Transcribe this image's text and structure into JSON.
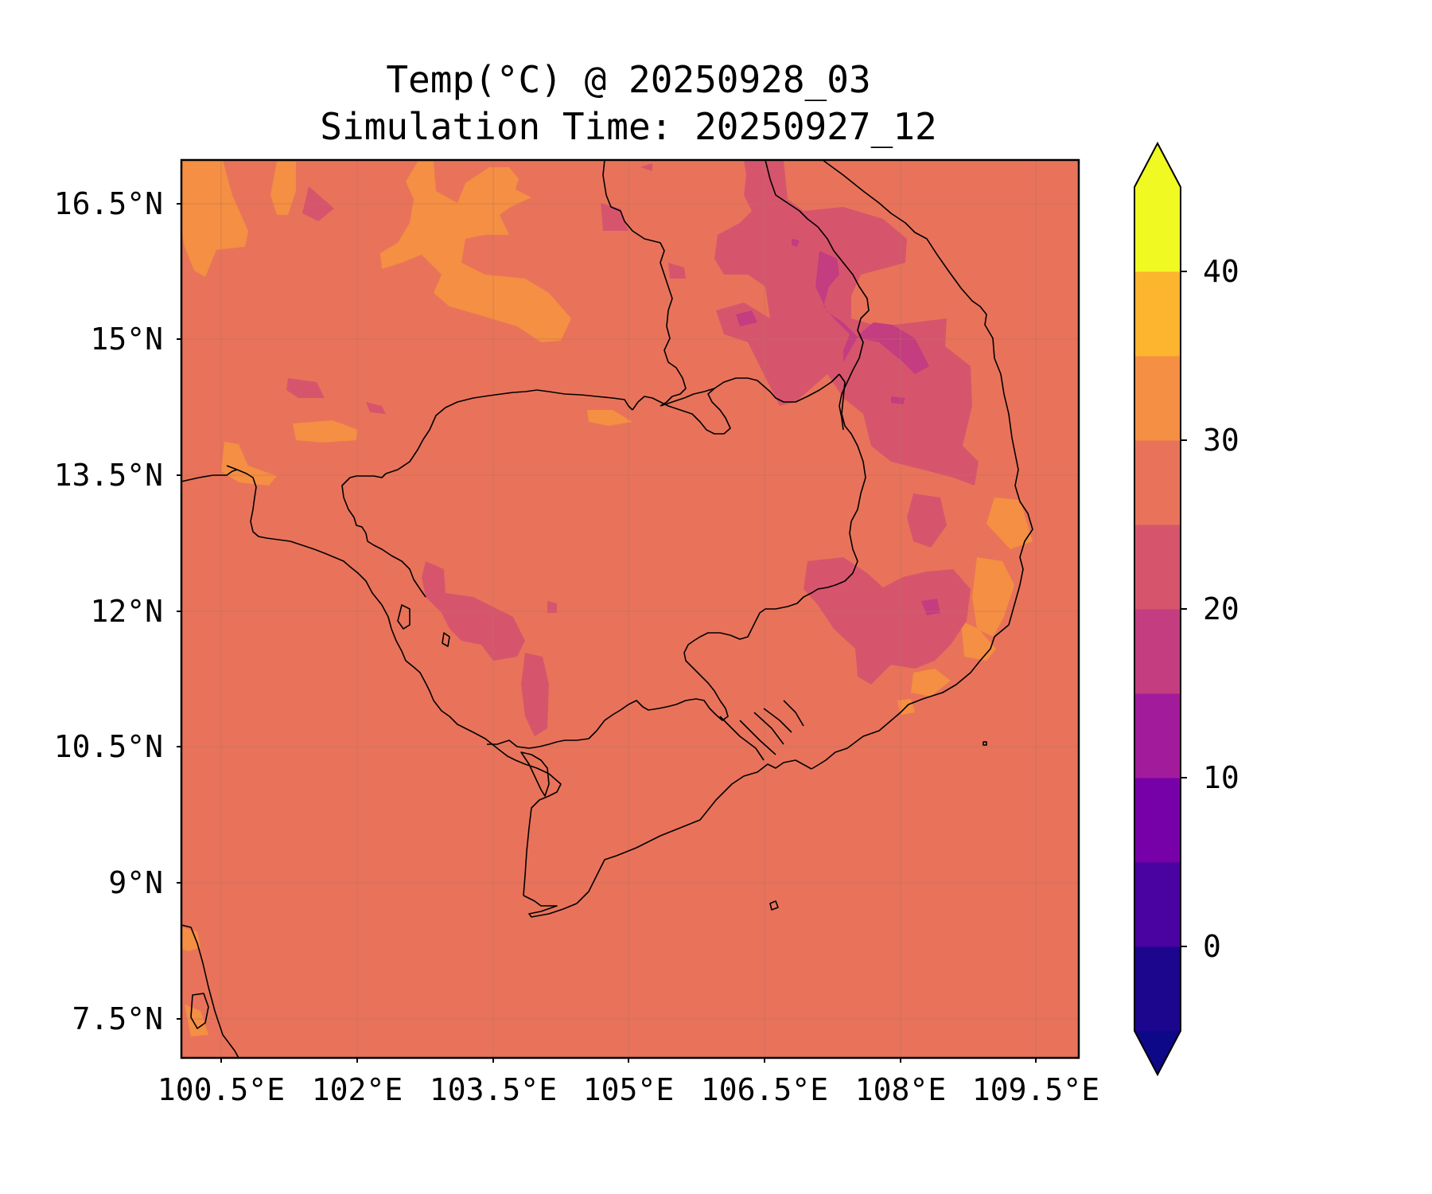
{
  "title": {
    "line1": "Temp(°C) @ 20250928_03",
    "line2": "Simulation Time: 20250927_12"
  },
  "axes": {
    "lat_ticks": [
      "16.5°N",
      "15°N",
      "13.5°N",
      "12°N",
      "10.5°N",
      "9°N",
      "7.5°N"
    ],
    "lon_ticks": [
      "100.5°E",
      "102°E",
      "103.5°E",
      "105°E",
      "106.5°E",
      "108°E",
      "109.5°E"
    ],
    "lon_range": [
      100.5,
      110.4
    ],
    "lat_range": [
      7.1,
      17.0
    ],
    "grid": true
  },
  "colorbar": {
    "ticks": [
      "0",
      "10",
      "20",
      "30",
      "40"
    ],
    "levels": [
      -5,
      0,
      5,
      10,
      15,
      20,
      25,
      30,
      35,
      40,
      45
    ],
    "colors": [
      "#1b068d",
      "#4a02a0",
      "#7701a8",
      "#a11b9b",
      "#c33d80",
      "#d6556d",
      "#e8735a",
      "#f48f43",
      "#fdb42f",
      "#f0f921"
    ],
    "under_color": "#0d0887",
    "over_color": "#f0f921",
    "extend": "both"
  },
  "map": {
    "background_color": "#e8735a",
    "cool_color": "#d6556d",
    "cooler_color": "#c33d80",
    "warm_color": "#f48f43",
    "warmest_color": "#fdb42f"
  }
}
